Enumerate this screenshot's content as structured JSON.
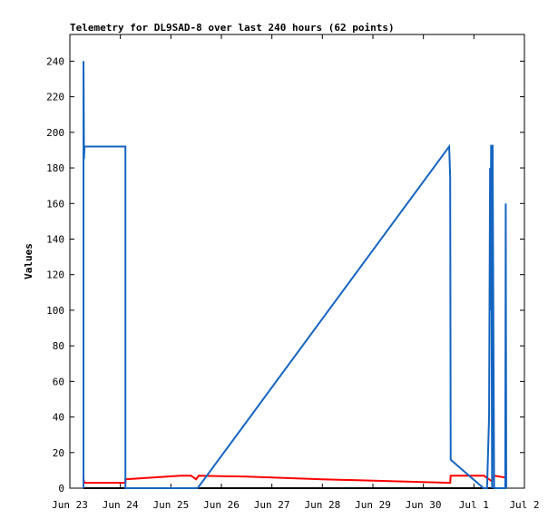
{
  "chart_data": {
    "type": "line",
    "title": "Telemetry for DL9SAD-8 over last 240 hours (62 points)",
    "ylabel": "Values",
    "xlim": [
      0,
      9
    ],
    "ylim": [
      0,
      255
    ],
    "xticks": [
      {
        "value": 0,
        "label": "Jun 23"
      },
      {
        "value": 1,
        "label": "Jun 24"
      },
      {
        "value": 2,
        "label": "Jun 25"
      },
      {
        "value": 3,
        "label": "Jun 26"
      },
      {
        "value": 4,
        "label": "Jun 27"
      },
      {
        "value": 5,
        "label": "Jun 28"
      },
      {
        "value": 6,
        "label": "Jun 29"
      },
      {
        "value": 7,
        "label": "Jun 30"
      },
      {
        "value": 8,
        "label": "Jul 1"
      },
      {
        "value": 9,
        "label": "Jul 2"
      }
    ],
    "yticks": [
      0,
      20,
      40,
      60,
      80,
      100,
      120,
      140,
      160,
      180,
      200,
      220,
      240
    ],
    "series": [
      {
        "color": "#000000",
        "x": [
          0.27,
          8.62
        ],
        "values": [
          0,
          0
        ]
      },
      {
        "color": "#ff0000",
        "x": [
          0.27,
          0.29,
          1.1,
          1.1,
          2.2,
          2.4,
          2.5,
          2.55,
          3.5,
          5,
          7.53,
          7.54,
          8.2,
          8.35,
          8.4,
          8.62
        ],
        "values": [
          5,
          3,
          3,
          5,
          7,
          7,
          5,
          7,
          6.5,
          5,
          3,
          7,
          7,
          4,
          7,
          6
        ]
      },
      {
        "color": "#1565c0",
        "x": [
          0.27,
          0.27,
          0.28,
          0.29,
          1.1,
          1.1,
          2.53,
          7.51,
          7.53,
          7.54,
          8.19,
          8.26,
          8.3,
          8.32,
          8.33,
          8.34,
          8.36,
          8.37,
          8.4,
          8.62,
          8.63,
          8.64
        ],
        "values": [
          0,
          240,
          185,
          192,
          192,
          0,
          0,
          192,
          175,
          16,
          0,
          0,
          40,
          180,
          100,
          193,
          0,
          193,
          0,
          0,
          160,
          0
        ]
      }
    ]
  }
}
